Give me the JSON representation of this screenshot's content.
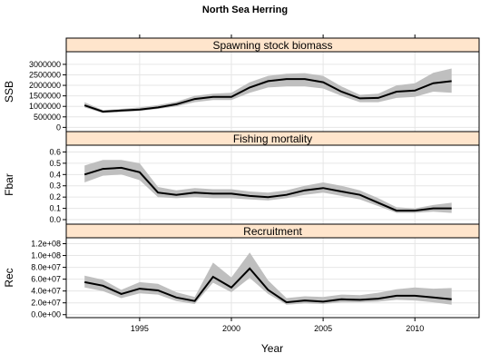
{
  "chart_data": {
    "type": "line",
    "title": "North Sea Herring",
    "xlabel": "Year",
    "xlim": [
      1991,
      2013.5
    ],
    "x_ticks": [
      1995,
      2000,
      2005,
      2010
    ],
    "x_tick_labels": [
      "1995",
      "2000",
      "2005",
      "2010"
    ],
    "colors": {
      "strip_fill": "#ffe5cc",
      "band": "#bfbfbf",
      "line": "#000000",
      "grid": "#e6e6e6"
    },
    "x": [
      1992,
      1993,
      1994,
      1995,
      1996,
      1997,
      1998,
      1999,
      2000,
      2001,
      2002,
      2003,
      2004,
      2005,
      2006,
      2007,
      2008,
      2009,
      2010,
      2011,
      2012
    ],
    "panels": [
      {
        "name": "Spawning stock biomass",
        "ylabel": "SSB",
        "ylim": [
          -200000,
          3600000
        ],
        "ticks": [
          0,
          500000,
          1000000,
          1500000,
          2000000,
          2500000,
          3000000
        ],
        "tick_labels": [
          "0",
          "500000",
          "1000000",
          "1500000",
          "2000000",
          "2500000",
          "3000000"
        ],
        "values": [
          1050000,
          750000,
          800000,
          850000,
          950000,
          1100000,
          1350000,
          1450000,
          1450000,
          1900000,
          2200000,
          2300000,
          2300000,
          2150000,
          1700000,
          1380000,
          1400000,
          1700000,
          1750000,
          2100000,
          2200000
        ],
        "lower": [
          950000,
          680000,
          730000,
          780000,
          880000,
          1000000,
          1200000,
          1300000,
          1300000,
          1650000,
          1900000,
          1950000,
          1950000,
          1850000,
          1500000,
          1200000,
          1200000,
          1400000,
          1450000,
          1700000,
          1650000
        ],
        "upper": [
          1200000,
          820000,
          880000,
          950000,
          1060000,
          1220000,
          1500000,
          1600000,
          1650000,
          2150000,
          2450000,
          2550000,
          2580000,
          2450000,
          1950000,
          1550000,
          1600000,
          2000000,
          2100000,
          2600000,
          2800000
        ]
      },
      {
        "name": "Fishing mortality",
        "ylabel": "Fbar",
        "ylim": [
          -0.04,
          0.66
        ],
        "ticks": [
          0.0,
          0.1,
          0.2,
          0.3,
          0.4,
          0.5,
          0.6
        ],
        "tick_labels": [
          "0.0",
          "0.1",
          "0.2",
          "0.3",
          "0.4",
          "0.5",
          "0.6"
        ],
        "values": [
          0.4,
          0.45,
          0.46,
          0.42,
          0.24,
          0.22,
          0.24,
          0.23,
          0.23,
          0.21,
          0.2,
          0.22,
          0.26,
          0.28,
          0.25,
          0.22,
          0.15,
          0.08,
          0.08,
          0.1,
          0.1
        ],
        "lower": [
          0.33,
          0.39,
          0.4,
          0.35,
          0.2,
          0.19,
          0.2,
          0.19,
          0.19,
          0.18,
          0.17,
          0.19,
          0.22,
          0.24,
          0.21,
          0.18,
          0.12,
          0.06,
          0.06,
          0.07,
          0.06
        ],
        "upper": [
          0.48,
          0.53,
          0.53,
          0.5,
          0.29,
          0.26,
          0.28,
          0.27,
          0.27,
          0.25,
          0.24,
          0.26,
          0.3,
          0.33,
          0.3,
          0.26,
          0.19,
          0.11,
          0.1,
          0.13,
          0.15
        ]
      },
      {
        "name": "Recruitment",
        "ylabel": "Rec",
        "ylim": [
          -5000000,
          130000000
        ],
        "ticks": [
          0,
          20000000,
          40000000,
          60000000,
          80000000,
          100000000,
          120000000
        ],
        "tick_labels": [
          "0.0e+00",
          "2.0e+07",
          "4.0e+07",
          "6.0e+07",
          "8.0e+07",
          "1.0e+08",
          "1.2e+08"
        ],
        "values": [
          55000000,
          49000000,
          35000000,
          44000000,
          41000000,
          29000000,
          23000000,
          64000000,
          46000000,
          78000000,
          42000000,
          21000000,
          24000000,
          22000000,
          26000000,
          25000000,
          27000000,
          32000000,
          32000000,
          29000000,
          26000000
        ],
        "lower": [
          46000000,
          40000000,
          28000000,
          36000000,
          34000000,
          23000000,
          18000000,
          54000000,
          38000000,
          62000000,
          35000000,
          17000000,
          19000000,
          18000000,
          21000000,
          21000000,
          22000000,
          25000000,
          24000000,
          21000000,
          17000000
        ],
        "upper": [
          66000000,
          59000000,
          42000000,
          55000000,
          52000000,
          38000000,
          30000000,
          88000000,
          63000000,
          105000000,
          58000000,
          28000000,
          31000000,
          30000000,
          34000000,
          33000000,
          37000000,
          43000000,
          46000000,
          44000000,
          45000000
        ]
      }
    ]
  }
}
